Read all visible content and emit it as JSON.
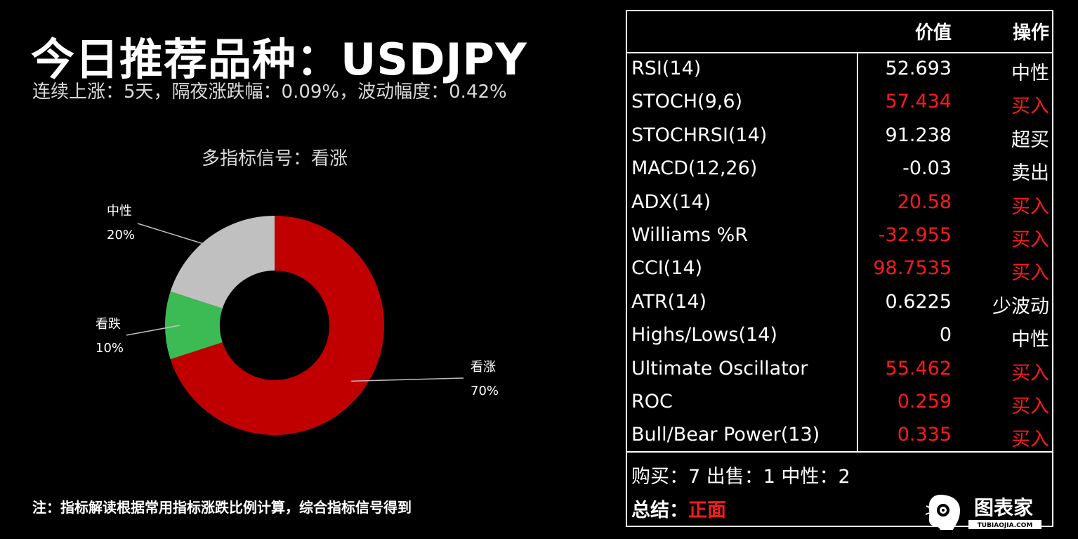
{
  "header": {
    "title": "今日推荐品种：USDJPY",
    "subtitle": "连续上涨：5天，隔夜涨跌幅：0.09%，波动幅度：0.42%"
  },
  "footnote": "注：指标解读根据常用指标涨跌比例计算，综合指标信号得到",
  "chart_data": {
    "type": "pie",
    "style": "donut",
    "title": "多指标信号：看涨",
    "slices": [
      {
        "label": "看涨",
        "value": 70,
        "value_label": "70%",
        "color": "#c00000"
      },
      {
        "label": "看跌",
        "value": 10,
        "value_label": "10%",
        "color": "#3cba54"
      },
      {
        "label": "中性",
        "value": 20,
        "value_label": "20%",
        "color": "#c0c0c0"
      }
    ]
  },
  "table": {
    "headers": {
      "name": "",
      "value": "价值",
      "action": "操作"
    },
    "rows": [
      {
        "name": "RSI(14)",
        "value": "52.693",
        "action": "中性",
        "highlight": false
      },
      {
        "name": "STOCH(9,6)",
        "value": "57.434",
        "action": "买入",
        "highlight": true
      },
      {
        "name": "STOCHRSI(14)",
        "value": "91.238",
        "action": "超买",
        "highlight": false
      },
      {
        "name": "MACD(12,26)",
        "value": "-0.03",
        "action": "卖出",
        "highlight": false
      },
      {
        "name": "ADX(14)",
        "value": "20.58",
        "action": "买入",
        "highlight": true
      },
      {
        "name": "Williams %R",
        "value": "-32.955",
        "action": "买入",
        "highlight": true
      },
      {
        "name": "CCI(14)",
        "value": "98.7535",
        "action": "买入",
        "highlight": true
      },
      {
        "name": "ATR(14)",
        "value": "0.6225",
        "action": "少波动",
        "highlight": false
      },
      {
        "name": "Highs/Lows(14)",
        "value": "0",
        "action": "中性",
        "highlight": false
      },
      {
        "name": "Ultimate Oscillator",
        "value": "55.462",
        "action": "买入",
        "highlight": true
      },
      {
        "name": "ROC",
        "value": "0.259",
        "action": "买入",
        "highlight": true
      },
      {
        "name": "Bull/Bear Power(13)",
        "value": "0.335",
        "action": "买入",
        "highlight": true
      }
    ]
  },
  "summary": {
    "counts": "购买：7 出售：1 中性：2",
    "conclusion_label": "总结：",
    "conclusion_value": "正面"
  },
  "logo": {
    "name": "图表家",
    "url_text": "TUBIAOJIA.COM",
    "icon": "brain-head-icon"
  },
  "colors": {
    "highlight": "#ff1a1a",
    "background": "#000000",
    "text": "#ffffff"
  }
}
